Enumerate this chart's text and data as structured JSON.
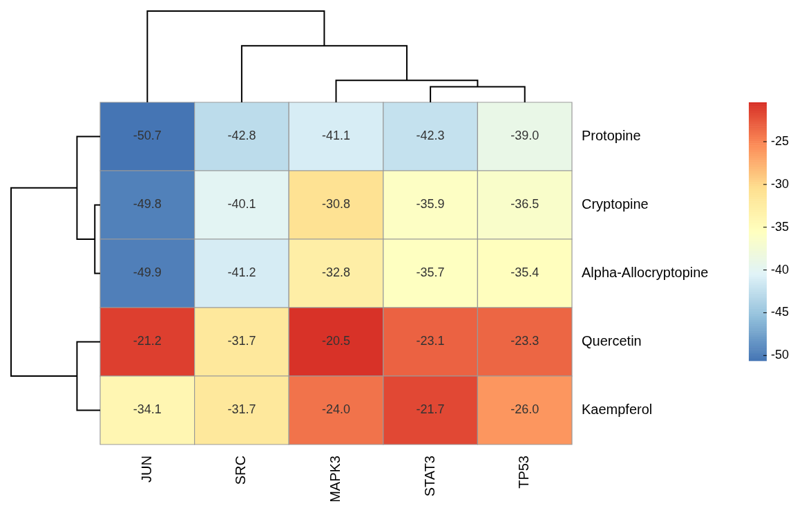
{
  "chart_data": {
    "type": "heatmap",
    "categories": [
      "JUN",
      "SRC",
      "MAPK3",
      "STAT3",
      "TP53"
    ],
    "y_categories": [
      "Protopine",
      "Cryptopine",
      "Alpha-Allocryptopine",
      "Quercetin",
      "Kaempferol"
    ],
    "cells": [
      [
        -50.7,
        -42.8,
        -41.1,
        -42.3,
        -39.0
      ],
      [
        -49.8,
        -40.1,
        -30.8,
        -35.9,
        -36.5
      ],
      [
        -49.9,
        -41.2,
        -32.8,
        -35.7,
        -35.4
      ],
      [
        -21.2,
        -31.7,
        -20.5,
        -23.1,
        -23.3
      ],
      [
        -34.1,
        -31.7,
        -24.0,
        -21.7,
        -26.0
      ]
    ],
    "cell_labels": [
      [
        "-50.7",
        "-42.8",
        "-41.1",
        "-42.3",
        "-39.0"
      ],
      [
        "-49.8",
        "-40.1",
        "-30.8",
        "-35.9",
        "-36.5"
      ],
      [
        "-49.9",
        "-41.2",
        "-32.8",
        "-35.7",
        "-35.4"
      ],
      [
        "-21.2",
        "-31.7",
        "-20.5",
        "-23.1",
        "-23.3"
      ],
      [
        "-34.1",
        "-31.7",
        "-24.0",
        "-21.7",
        "-26.0"
      ]
    ],
    "clim": [
      -50.6,
      -20.4
    ],
    "cticks": [
      -50,
      -45,
      -40,
      -35,
      -30,
      -25
    ],
    "data_labels": true
  }
}
